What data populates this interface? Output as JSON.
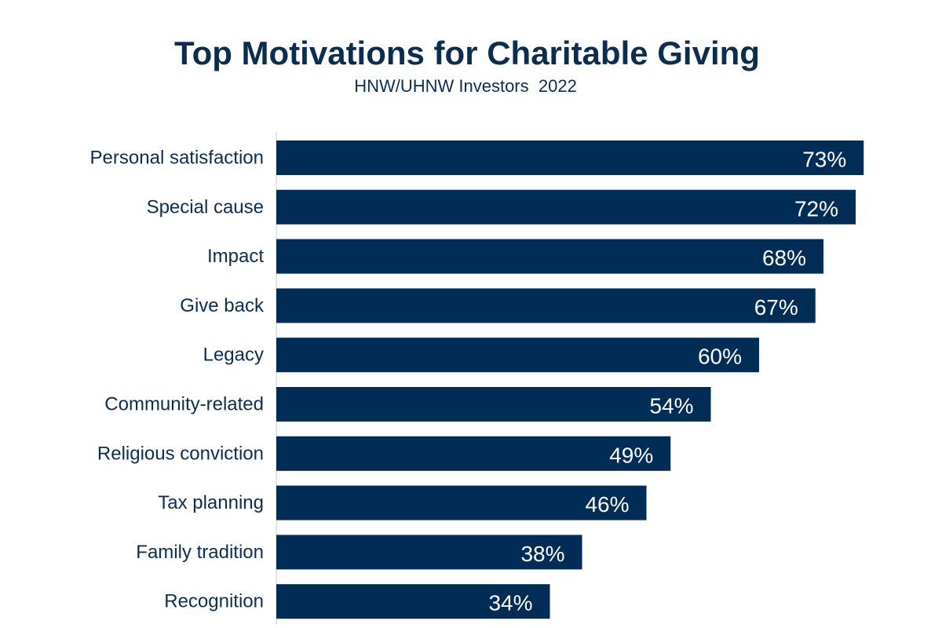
{
  "chart_data": {
    "type": "bar",
    "orientation": "horizontal",
    "title": "Top Motivations for Charitable Giving",
    "subtitle": "HNW/UHNW Investors  2022",
    "categories": [
      "Personal satisfaction",
      "Special cause",
      "Impact",
      "Give back",
      "Legacy",
      "Community-related",
      "Religious conviction",
      "Tax planning",
      "Family tradition",
      "Recognition"
    ],
    "values": [
      73,
      72,
      68,
      67,
      60,
      54,
      49,
      46,
      38,
      34
    ],
    "value_labels": [
      "73%",
      "72%",
      "68%",
      "67%",
      "60%",
      "54%",
      "49%",
      "46%",
      "38%",
      "34%"
    ],
    "unit": "%",
    "xlim": [
      0,
      100
    ],
    "grid": false,
    "legend": "none",
    "bar_color": "#002d56",
    "label_color": "#0b2d52"
  }
}
